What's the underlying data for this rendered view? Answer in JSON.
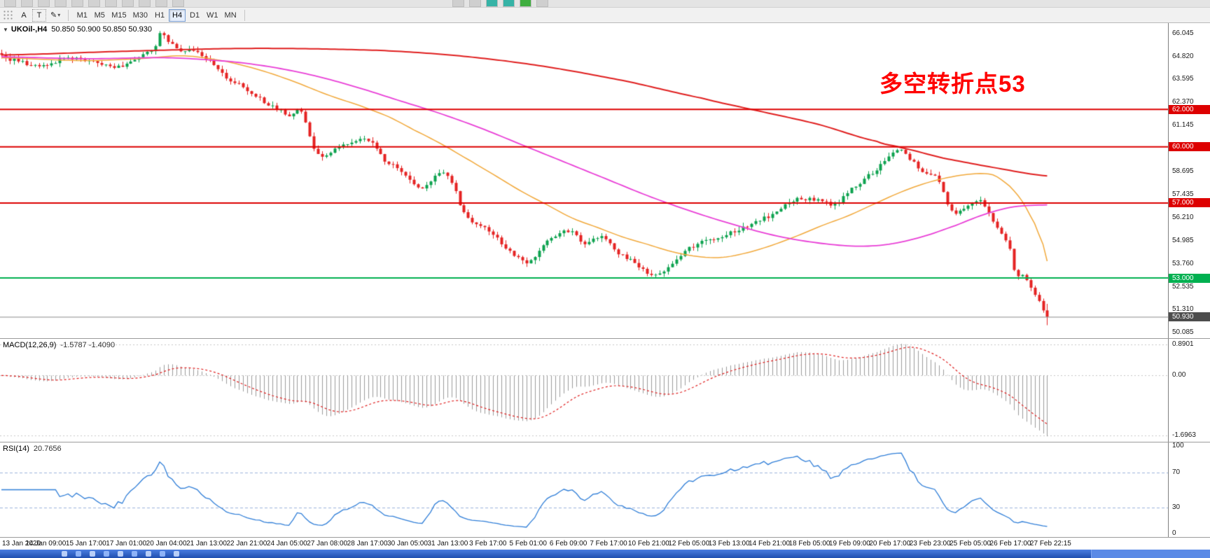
{
  "toolbar": {
    "tools": [
      {
        "name": "text-tool",
        "label": "A"
      },
      {
        "name": "text-frame-tool",
        "label": "T"
      },
      {
        "name": "draw-tool",
        "label": "✎"
      }
    ],
    "timeframes": [
      "M1",
      "M5",
      "M15",
      "M30",
      "H1",
      "H4",
      "D1",
      "W1",
      "MN"
    ],
    "active_timeframe": "H4"
  },
  "chart": {
    "symbol_label": "UKOil-,H4",
    "ohlc_label": "50.850 50.900 50.850 50.930",
    "annotation": {
      "text": "多空转折点53",
      "color": "#ff0000"
    }
  },
  "chart_data": {
    "type": "candlestick",
    "symbol": "UKOil",
    "timeframe": "H4",
    "bars": 252,
    "last_price": 50.93,
    "current_bar_ohlc": {
      "open": "50.850",
      "high": "50.900",
      "low": "50.850",
      "close": "50.930"
    },
    "price_range": [
      49.79,
      66.6
    ],
    "bar_spacing": 5.95,
    "colors": {
      "up": "#0ca24e",
      "down": "#e52222",
      "ma_red": "#e01f1f",
      "ma_magenta": "#e93fd7",
      "ma_orange": "#f2a93b",
      "hline_red": "#dd0000",
      "hline_green": "#00b050",
      "bid_line": "#8c8c8c",
      "macd_hist": "#9c9c9c",
      "macd_signal": "#e01f1f",
      "rsi_line": "#2f7ed8",
      "rsi_levels": "#9db4dd"
    },
    "close_anchors": [
      [
        0,
        64.8
      ],
      [
        6,
        64.45
      ],
      [
        10,
        64.4
      ],
      [
        15,
        64.65
      ],
      [
        20,
        64.6
      ],
      [
        25,
        64.35
      ],
      [
        29,
        64.3
      ],
      [
        33,
        64.7
      ],
      [
        37,
        65.3
      ],
      [
        38,
        66.0
      ],
      [
        40,
        65.6
      ],
      [
        43,
        65.2
      ],
      [
        48,
        64.9
      ],
      [
        53,
        63.9
      ],
      [
        59,
        63.0
      ],
      [
        64,
        62.3
      ],
      [
        69,
        61.7
      ],
      [
        72,
        61.9
      ],
      [
        75,
        59.9
      ],
      [
        77,
        59.5
      ],
      [
        82,
        60.1
      ],
      [
        88,
        60.3
      ],
      [
        92,
        59.3
      ],
      [
        96,
        58.7
      ],
      [
        101,
        57.8
      ],
      [
        104,
        58.4
      ],
      [
        107,
        58.5
      ],
      [
        111,
        56.5
      ],
      [
        115,
        55.8
      ],
      [
        118,
        55.3
      ],
      [
        123,
        54.2
      ],
      [
        127,
        53.9
      ],
      [
        131,
        54.9
      ],
      [
        136,
        55.5
      ],
      [
        140,
        54.9
      ],
      [
        144,
        55.2
      ],
      [
        148,
        54.3
      ],
      [
        152,
        53.8
      ],
      [
        156,
        53.2
      ],
      [
        160,
        53.6
      ],
      [
        164,
        54.4
      ],
      [
        168,
        54.9
      ],
      [
        172,
        55.1
      ],
      [
        177,
        55.6
      ],
      [
        181,
        56.0
      ],
      [
        185,
        56.4
      ],
      [
        189,
        57.1
      ],
      [
        193,
        57.2
      ],
      [
        198,
        57.1
      ],
      [
        200,
        56.9
      ],
      [
        203,
        57.6
      ],
      [
        207,
        58.3
      ],
      [
        212,
        59.2
      ],
      [
        215,
        59.9
      ],
      [
        218,
        59.3
      ],
      [
        222,
        58.6
      ],
      [
        224,
        58.5
      ],
      [
        227,
        57.0
      ],
      [
        229,
        56.4
      ],
      [
        232,
        56.9
      ],
      [
        234,
        57.2
      ],
      [
        237,
        56.5
      ],
      [
        239,
        55.6
      ],
      [
        242,
        54.6
      ],
      [
        243,
        53.4
      ],
      [
        246,
        52.9
      ],
      [
        248,
        52.1
      ],
      [
        250,
        51.3
      ],
      [
        251,
        50.93
      ]
    ],
    "ma_red_anchors": [
      [
        0,
        64.9
      ],
      [
        30,
        65.1
      ],
      [
        60,
        65.25
      ],
      [
        90,
        65.15
      ],
      [
        110,
        64.85
      ],
      [
        130,
        64.3
      ],
      [
        150,
        63.5
      ],
      [
        168,
        62.6
      ],
      [
        182,
        61.9
      ],
      [
        196,
        61.2
      ],
      [
        210,
        60.3
      ],
      [
        216,
        59.95
      ],
      [
        226,
        59.4
      ],
      [
        238,
        58.9
      ],
      [
        251,
        58.45
      ]
    ],
    "ma_magenta_anchors": [
      [
        0,
        64.8
      ],
      [
        20,
        64.7
      ],
      [
        40,
        64.75
      ],
      [
        55,
        64.55
      ],
      [
        65,
        64.25
      ],
      [
        75,
        63.8
      ],
      [
        85,
        63.2
      ],
      [
        95,
        62.5
      ],
      [
        105,
        61.8
      ],
      [
        115,
        61.0
      ],
      [
        125,
        60.1
      ],
      [
        135,
        59.2
      ],
      [
        145,
        58.3
      ],
      [
        155,
        57.4
      ],
      [
        165,
        56.6
      ],
      [
        175,
        55.9
      ],
      [
        185,
        55.3
      ],
      [
        195,
        54.9
      ],
      [
        205,
        54.7
      ],
      [
        213,
        54.8
      ],
      [
        221,
        55.2
      ],
      [
        229,
        55.8
      ],
      [
        236,
        56.4
      ],
      [
        243,
        56.8
      ],
      [
        251,
        56.9
      ]
    ],
    "ma_orange_anchors": [
      [
        0,
        64.75
      ],
      [
        20,
        64.6
      ],
      [
        33,
        64.7
      ],
      [
        44,
        64.85
      ],
      [
        54,
        64.55
      ],
      [
        62,
        64.1
      ],
      [
        70,
        63.5
      ],
      [
        78,
        62.8
      ],
      [
        86,
        62.2
      ],
      [
        93,
        61.6
      ],
      [
        99,
        60.9
      ],
      [
        106,
        60.1
      ],
      [
        113,
        59.2
      ],
      [
        119,
        58.4
      ],
      [
        125,
        57.6
      ],
      [
        131,
        56.9
      ],
      [
        137,
        56.2
      ],
      [
        143,
        55.7
      ],
      [
        149,
        55.2
      ],
      [
        155,
        54.8
      ],
      [
        161,
        54.4
      ],
      [
        167,
        54.15
      ],
      [
        173,
        54.1
      ],
      [
        179,
        54.35
      ],
      [
        185,
        54.75
      ],
      [
        191,
        55.25
      ],
      [
        197,
        55.8
      ],
      [
        203,
        56.3
      ],
      [
        209,
        56.9
      ],
      [
        215,
        57.5
      ],
      [
        221,
        58.0
      ],
      [
        227,
        58.35
      ],
      [
        233,
        58.55
      ],
      [
        238,
        58.5
      ],
      [
        242,
        57.9
      ],
      [
        245,
        57.1
      ],
      [
        248,
        55.9
      ],
      [
        250,
        54.8
      ],
      [
        251,
        53.9
      ]
    ],
    "hlines": [
      {
        "price": 62.0,
        "label": "62.000",
        "color": "#dd0000"
      },
      {
        "price": 60.0,
        "label": "60.000",
        "color": "#dd0000"
      },
      {
        "price": 57.0,
        "label": "57.000",
        "color": "#dd0000"
      },
      {
        "price": 53.0,
        "label": "53.000",
        "color": "#00b050"
      }
    ],
    "bid_badge": {
      "price": 50.93,
      "label": "50.930",
      "color": "#4d4d4d"
    },
    "price_axis_labels": [
      "66.045",
      "64.820",
      "63.595",
      "62.370",
      "61.145",
      "59.920",
      "58.695",
      "57.435",
      "56.210",
      "54.985",
      "53.760",
      "52.535",
      "51.310",
      "50.085"
    ],
    "macd": {
      "title": "MACD(12,26,9)",
      "values": "-1.5787 -1.4090",
      "scale_labels": [
        "0.8901",
        "0.00",
        "-1.6963"
      ],
      "range": [
        -1.9,
        1.02
      ]
    },
    "rsi": {
      "title": "RSI(14)",
      "value": "20.7656",
      "levels": [
        "100",
        "70",
        "30",
        "0"
      ],
      "dashed_levels": [
        70,
        30
      ]
    },
    "time_labels": [
      "13 Jan 2020",
      "14 Jan 09:00",
      "15 Jan 17:00",
      "17 Jan 01:00",
      "20 Jan 04:00",
      "21 Jan 13:00",
      "22 Jan 21:00",
      "24 Jan 05:00",
      "27 Jan 08:00",
      "28 Jan 17:00",
      "30 Jan 05:00",
      "31 Jan 13:00",
      "3 Feb 17:00",
      "5 Feb 01:00",
      "6 Feb 09:00",
      "7 Feb 17:00",
      "10 Feb 21:00",
      "12 Feb 05:00",
      "13 Feb 13:00",
      "14 Feb 21:00",
      "18 Feb 05:00",
      "19 Feb 09:00",
      "20 Feb 17:00",
      "23 Feb 23:00",
      "25 Feb 05:00",
      "26 Feb 17:00",
      "27 Feb 22:15"
    ]
  }
}
